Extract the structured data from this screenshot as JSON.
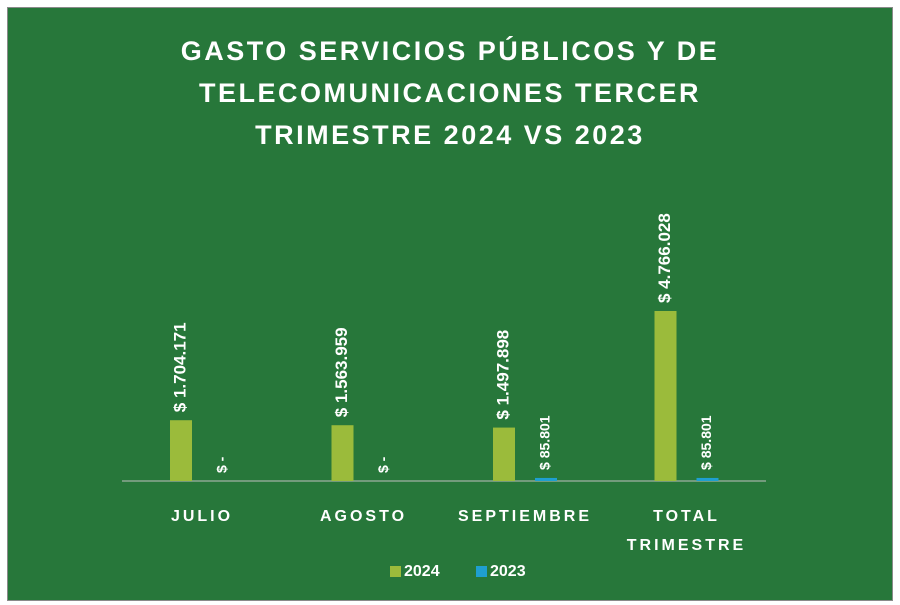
{
  "chart_data": {
    "type": "bar",
    "title": "GASTO SERVICIOS PÚBLICOS Y DE TELECOMUNICACIONES TERCER TRIMESTRE 2024 VS 2023",
    "categories": [
      "JULIO",
      "AGOSTO",
      "SEPTIEMBRE",
      "TOTAL TRIMESTRE"
    ],
    "series": [
      {
        "name": "2024",
        "color": "#9bbb3b",
        "values": [
          1704171,
          1563959,
          1497898,
          4766028
        ],
        "value_labels": [
          "$ 1.704.171",
          "$ 1.563.959",
          "$ 1.497.898",
          "$ 4.766.028"
        ]
      },
      {
        "name": "2023",
        "color": "#1f9fd0",
        "values": [
          0,
          0,
          85801,
          85801
        ],
        "value_labels": [
          "$ -",
          "$ -",
          "$ 85.801",
          "$ 85.801"
        ]
      }
    ],
    "legend": "bottom"
  }
}
